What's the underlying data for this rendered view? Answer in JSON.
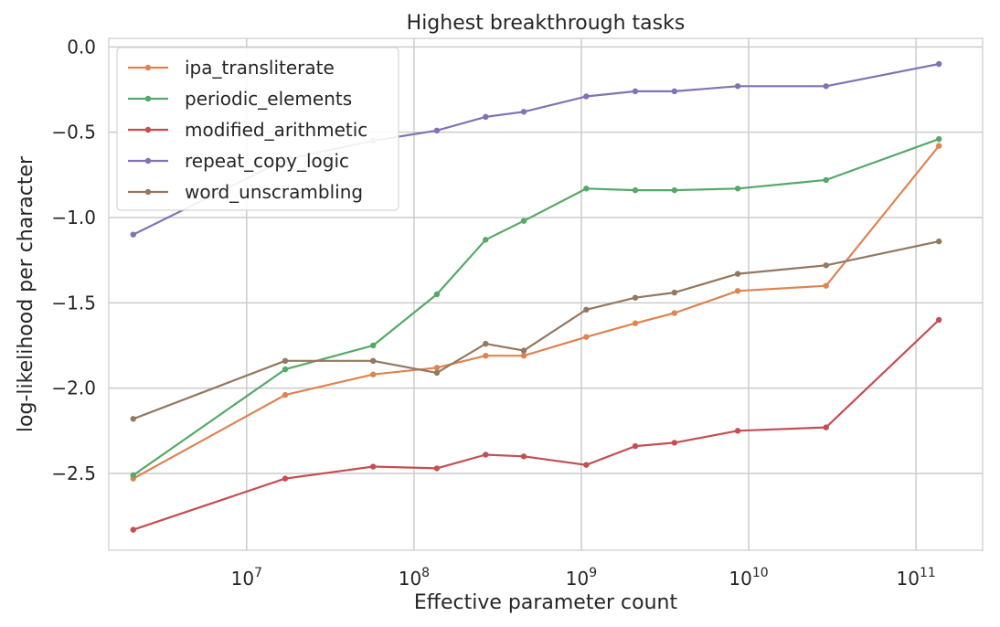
{
  "chart_data": {
    "type": "line",
    "title": "Highest breakthrough tasks",
    "xlabel": "Effective parameter count",
    "ylabel": "log-likelihood per character",
    "xscale": "log",
    "xlim": [
      1500000,
      250000000000
    ],
    "ylim": [
      -2.95,
      0.05
    ],
    "yticks": [
      0.0,
      -0.5,
      -1.0,
      -1.5,
      -2.0,
      -2.5
    ],
    "ytick_labels": [
      "0.0",
      "−0.5",
      "−1.0",
      "−1.5",
      "−2.0",
      "−2.5"
    ],
    "xticks": [
      {
        "base": "10",
        "exp": "7",
        "value": 10000000
      },
      {
        "base": "10",
        "exp": "8",
        "value": 100000000
      },
      {
        "base": "10",
        "exp": "9",
        "value": 1000000000
      },
      {
        "base": "10",
        "exp": "10",
        "value": 10000000000
      },
      {
        "base": "10",
        "exp": "11",
        "value": 100000000000
      }
    ],
    "grid": true,
    "legend_loc": "top-left",
    "x": [
      2100000,
      17000000,
      57000000,
      137000000,
      268000000,
      453000000,
      1070000000,
      2100000000,
      3600000000,
      8600000000,
      29000000000,
      137000000000
    ],
    "series": [
      {
        "name": "ipa_transliterate",
        "color": "#dd8452",
        "values": [
          -2.53,
          -2.04,
          -1.92,
          -1.88,
          -1.81,
          -1.81,
          -1.7,
          -1.62,
          -1.56,
          -1.43,
          -1.4,
          -0.58
        ]
      },
      {
        "name": "periodic_elements",
        "color": "#55a868",
        "values": [
          -2.51,
          -1.89,
          -1.75,
          -1.45,
          -1.13,
          -1.02,
          -0.83,
          -0.84,
          -0.84,
          -0.83,
          -0.78,
          -0.54
        ]
      },
      {
        "name": "modified_arithmetic",
        "color": "#c44e52",
        "values": [
          -2.83,
          -2.53,
          -2.46,
          -2.47,
          -2.39,
          -2.4,
          -2.45,
          -2.34,
          -2.32,
          -2.25,
          -2.23,
          -1.6
        ]
      },
      {
        "name": "repeat_copy_logic",
        "color": "#8172b3",
        "values": [
          -1.1,
          -0.66,
          -0.55,
          -0.49,
          -0.41,
          -0.38,
          -0.29,
          -0.26,
          -0.26,
          -0.23,
          -0.23,
          -0.1
        ]
      },
      {
        "name": "word_unscrambling",
        "color": "#937860",
        "values": [
          -2.18,
          -1.84,
          -1.84,
          -1.91,
          -1.74,
          -1.78,
          -1.54,
          -1.47,
          -1.44,
          -1.33,
          -1.28,
          -1.14
        ]
      }
    ]
  }
}
